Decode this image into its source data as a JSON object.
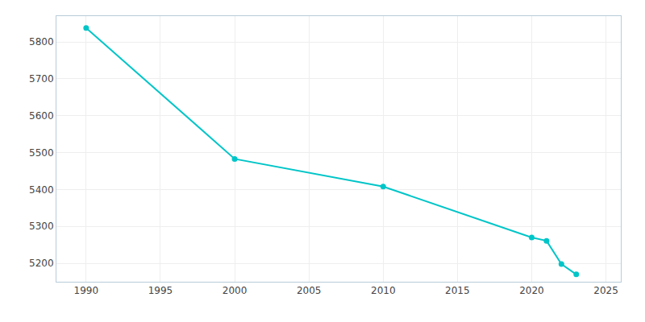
{
  "chart_data": {
    "type": "line",
    "x": [
      1990,
      2000,
      2010,
      2020,
      2021,
      2022,
      2023
    ],
    "values": [
      5838,
      5483,
      5408,
      5270,
      5261,
      5198,
      5170
    ],
    "color": "#00C5C8",
    "marker": "circle",
    "xlim": [
      1988,
      2026
    ],
    "ylim": [
      5150,
      5870
    ],
    "xticks": [
      1990,
      1995,
      2000,
      2005,
      2010,
      2015,
      2020,
      2025
    ],
    "yticks": [
      5200,
      5300,
      5400,
      5500,
      5600,
      5700,
      5800
    ],
    "grid": true
  }
}
